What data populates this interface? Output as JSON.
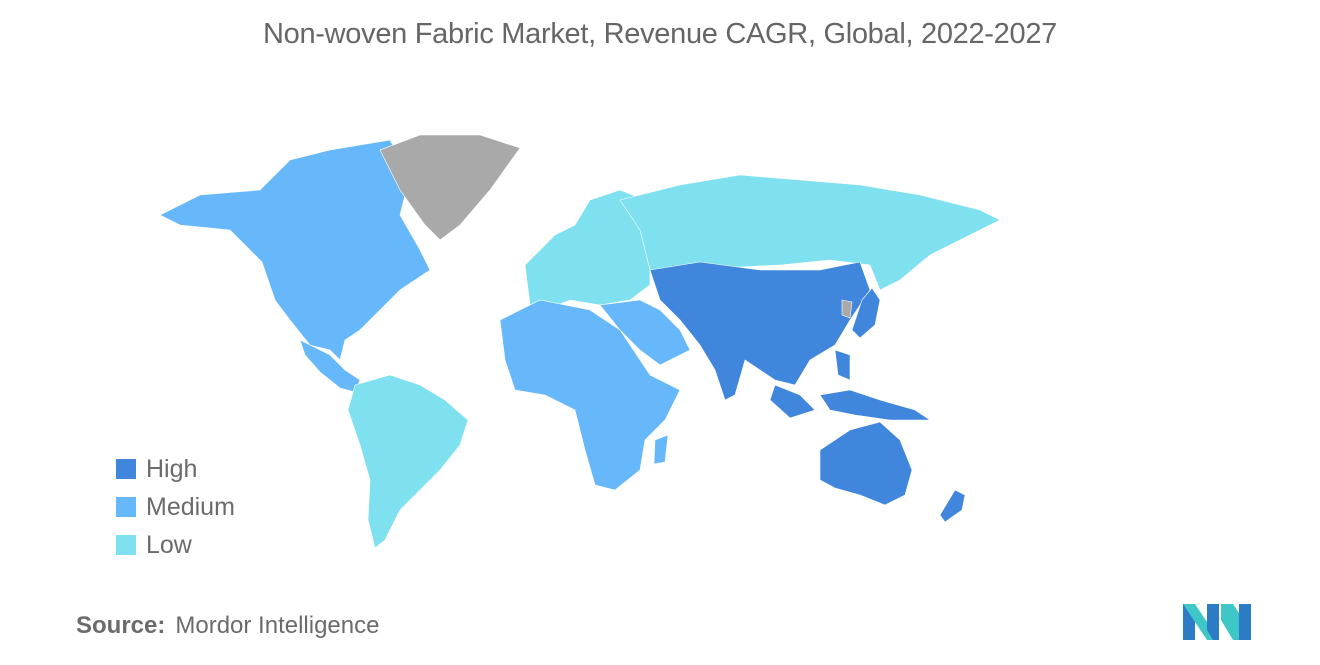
{
  "title": "Non-woven Fabric Market, Revenue CAGR, Global, 2022-2027",
  "legend": [
    {
      "label": "High",
      "color": "#3f86dc"
    },
    {
      "label": "Medium",
      "color": "#66b8fb"
    },
    {
      "label": "Low",
      "color": "#7fe0ef"
    }
  ],
  "no_data_color": "#a9a9a9",
  "source": {
    "label": "Source:",
    "value": "Mordor Intelligence"
  },
  "logo": {
    "text": "Mordor Intelligence",
    "colors": [
      "#2b7cc4",
      "#3fc6c6"
    ]
  }
}
